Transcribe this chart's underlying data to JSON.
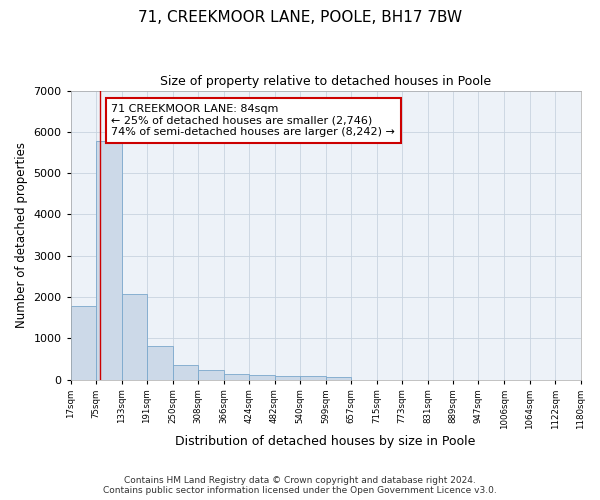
{
  "title": "71, CREEKMOOR LANE, POOLE, BH17 7BW",
  "subtitle": "Size of property relative to detached houses in Poole",
  "xlabel": "Distribution of detached houses by size in Poole",
  "ylabel": "Number of detached properties",
  "bar_color": "#ccd9e8",
  "bar_edge_color": "#7ba8cc",
  "grid_color": "#c8d4e0",
  "bg_color": "#edf2f8",
  "property_size": 84,
  "vline_color": "#cc0000",
  "annotation_line1": "71 CREEKMOOR LANE: 84sqm",
  "annotation_line2": "← 25% of detached houses are smaller (2,746)",
  "annotation_line3": "74% of semi-detached houses are larger (8,242) →",
  "annotation_box_color": "#cc0000",
  "footer_line1": "Contains HM Land Registry data © Crown copyright and database right 2024.",
  "footer_line2": "Contains public sector information licensed under the Open Government Licence v3.0.",
  "bin_edges": [
    17,
    75,
    133,
    191,
    250,
    308,
    366,
    424,
    482,
    540,
    599,
    657,
    715,
    773,
    831,
    889,
    947,
    1006,
    1064,
    1122,
    1180
  ],
  "bin_counts": [
    1780,
    5780,
    2060,
    820,
    360,
    220,
    130,
    110,
    90,
    75,
    65,
    0,
    0,
    0,
    0,
    0,
    0,
    0,
    0,
    0
  ],
  "ylim": [
    0,
    7000
  ],
  "xlim": [
    17,
    1180
  ]
}
